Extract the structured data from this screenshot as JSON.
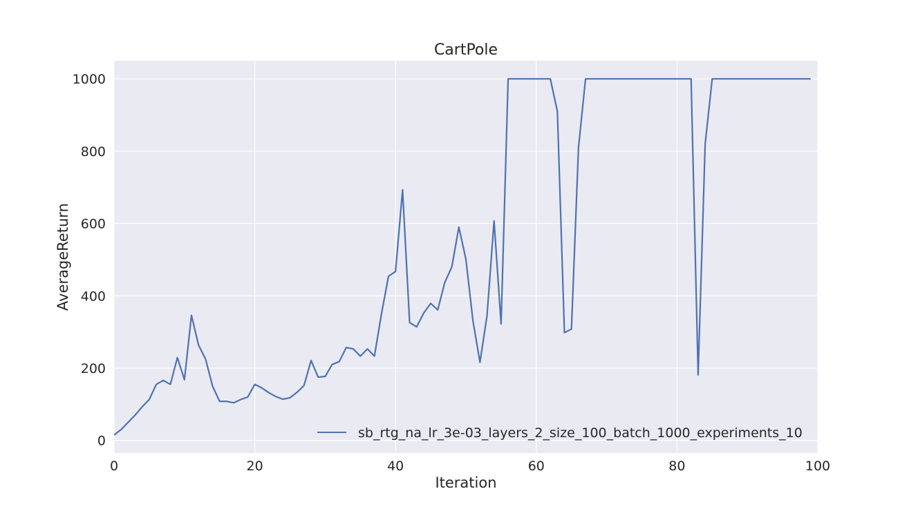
{
  "chart_data": {
    "type": "line",
    "title": "CartPole",
    "xlabel": "Iteration",
    "ylabel": "AverageReturn",
    "xlim": [
      0,
      100
    ],
    "ylim": [
      -35,
      1050
    ],
    "xticks": [
      0,
      20,
      40,
      60,
      80,
      100
    ],
    "yticks": [
      0,
      200,
      400,
      600,
      800,
      1000
    ],
    "grid": true,
    "legend_position": "lower-right",
    "background_color": "#eaeaf2",
    "series": [
      {
        "name": "sb_rtg_na_lr_3e-03_layers_2_size_100_batch_1000_experiments_10",
        "color": "#4c72b0",
        "x": [
          0,
          1,
          2,
          3,
          4,
          5,
          6,
          7,
          8,
          9,
          10,
          11,
          12,
          13,
          14,
          15,
          16,
          17,
          18,
          19,
          20,
          21,
          22,
          23,
          24,
          25,
          26,
          27,
          28,
          29,
          30,
          31,
          32,
          33,
          34,
          35,
          36,
          37,
          38,
          39,
          40,
          41,
          42,
          43,
          44,
          45,
          46,
          47,
          48,
          49,
          50,
          51,
          52,
          53,
          54,
          55,
          56,
          57,
          58,
          59,
          60,
          61,
          62,
          63,
          64,
          65,
          66,
          67,
          68,
          69,
          70,
          71,
          72,
          73,
          74,
          75,
          76,
          77,
          78,
          79,
          80,
          81,
          82,
          83,
          84,
          85,
          86,
          87,
          88,
          89,
          90,
          91,
          92,
          93,
          94,
          95,
          96,
          97,
          98,
          99
        ],
        "y": [
          15,
          30,
          50,
          70,
          93,
          113,
          155,
          166,
          155,
          229,
          168,
          346,
          264,
          225,
          150,
          108,
          108,
          104,
          113,
          120,
          155,
          145,
          132,
          121,
          114,
          118,
          133,
          152,
          221,
          175,
          177,
          210,
          218,
          257,
          253,
          233,
          253,
          233,
          350,
          454,
          467,
          693,
          326,
          314,
          352,
          379,
          361,
          437,
          480,
          590,
          501,
          331,
          216,
          345,
          607,
          322,
          1000,
          1000,
          1000,
          1000,
          1000,
          1000,
          1000,
          910,
          298,
          308,
          810,
          1000,
          1000,
          1000,
          1000,
          1000,
          1000,
          1000,
          1000,
          1000,
          1000,
          1000,
          1000,
          1000,
          1000,
          1000,
          1000,
          181,
          820,
          1000,
          1000,
          1000,
          1000,
          1000,
          1000,
          1000,
          1000,
          1000,
          1000,
          1000,
          1000,
          1000,
          1000,
          1000
        ]
      }
    ]
  }
}
